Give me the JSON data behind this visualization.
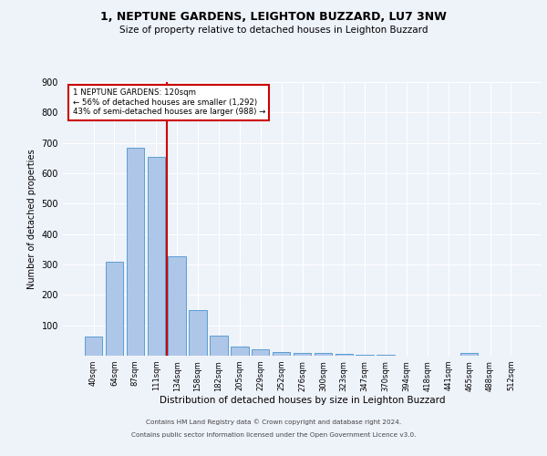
{
  "title1": "1, NEPTUNE GARDENS, LEIGHTON BUZZARD, LU7 3NW",
  "title2": "Size of property relative to detached houses in Leighton Buzzard",
  "xlabel": "Distribution of detached houses by size in Leighton Buzzard",
  "ylabel": "Number of detached properties",
  "footer1": "Contains HM Land Registry data © Crown copyright and database right 2024.",
  "footer2": "Contains public sector information licensed under the Open Government Licence v3.0.",
  "bar_labels": [
    "40sqm",
    "64sqm",
    "87sqm",
    "111sqm",
    "134sqm",
    "158sqm",
    "182sqm",
    "205sqm",
    "229sqm",
    "252sqm",
    "276sqm",
    "300sqm",
    "323sqm",
    "347sqm",
    "370sqm",
    "394sqm",
    "418sqm",
    "441sqm",
    "465sqm",
    "488sqm",
    "512sqm"
  ],
  "bar_values": [
    62,
    310,
    685,
    655,
    328,
    150,
    65,
    30,
    20,
    12,
    10,
    8,
    5,
    3,
    2,
    0,
    0,
    0,
    8,
    0,
    0
  ],
  "bar_color": "#aec6e8",
  "bar_edge_color": "#5a9fd4",
  "annotation_title": "1 NEPTUNE GARDENS: 120sqm",
  "annotation_line1": "← 56% of detached houses are smaller (1,292)",
  "annotation_line2": "43% of semi-detached houses are larger (988) →",
  "vline_index": 3.5,
  "vline_color": "#cc0000",
  "annotation_box_color": "#cc0000",
  "background_color": "#eef2f9",
  "ylim": [
    0,
    900
  ],
  "yticks": [
    0,
    100,
    200,
    300,
    400,
    500,
    600,
    700,
    800,
    900
  ],
  "grid_color": "#ffffff"
}
